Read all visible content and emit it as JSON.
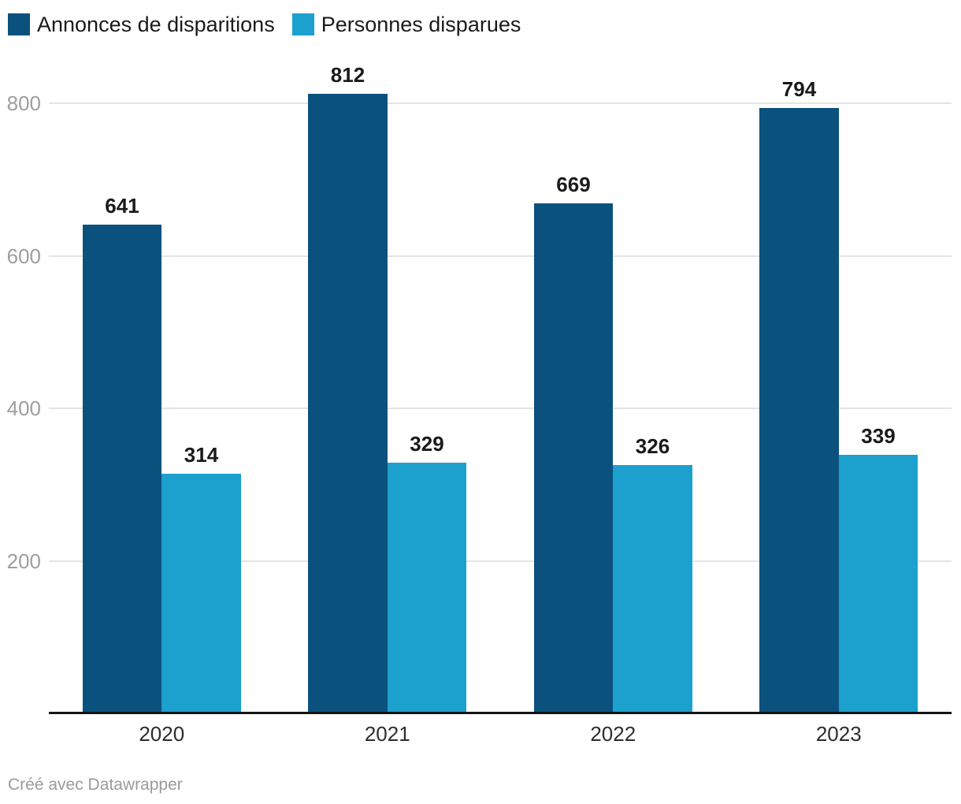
{
  "footer": {
    "credit": "Créé avec Datawrapper"
  },
  "chart_data": {
    "type": "bar",
    "title": "",
    "categories": [
      "2020",
      "2021",
      "2022",
      "2023"
    ],
    "series": [
      {
        "name": "Annonces de disparitions",
        "color": "#0a527d",
        "values": [
          641,
          812,
          669,
          794
        ]
      },
      {
        "name": "Personnes disparues",
        "color": "#1ca0cd",
        "values": [
          314,
          329,
          326,
          339
        ]
      }
    ],
    "yticks": [
      200,
      400,
      600,
      800
    ],
    "ylim": [
      0,
      830
    ],
    "grid": true,
    "value_labels": true,
    "legend_position": "top-left",
    "colors": {
      "grid": "#e4e4e4",
      "axis": "#141414",
      "tick_label": "#9e9e9e",
      "category_label": "#2d2d2d",
      "value_label": "#1a1a1a",
      "footer": "#9b9b9b"
    }
  }
}
